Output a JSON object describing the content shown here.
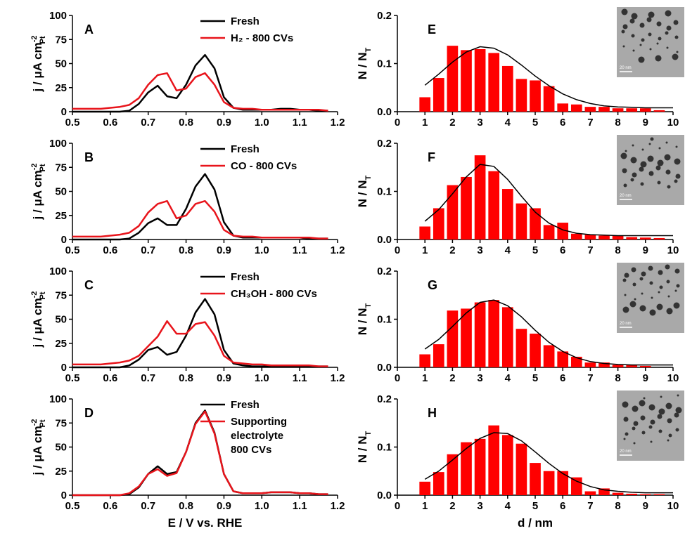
{
  "chart_data": [
    {
      "type": "line",
      "label": "A",
      "y_label": {
        "text": "j / μA cm",
        "sup": "-2",
        "sub": "Pt"
      },
      "x": [
        0.5,
        0.525,
        0.55,
        0.575,
        0.6,
        0.625,
        0.65,
        0.675,
        0.7,
        0.725,
        0.75,
        0.775,
        0.8,
        0.825,
        0.85,
        0.875,
        0.9,
        0.925,
        0.95,
        0.975,
        1.0,
        1.025,
        1.05,
        1.075,
        1.1,
        1.125,
        1.15,
        1.175
      ],
      "series": [
        {
          "name": "Fresh",
          "color": "#000000",
          "values": [
            0,
            0,
            0,
            0,
            0,
            0,
            1,
            8,
            20,
            27,
            16,
            14,
            28,
            48,
            59,
            45,
            15,
            4,
            2,
            2,
            2,
            2,
            3,
            3,
            2,
            2,
            1,
            1
          ]
        },
        {
          "name": "H₂ - 800 CVs",
          "color": "#e8141b",
          "values": [
            3,
            3,
            3,
            3,
            4,
            5,
            7,
            14,
            28,
            38,
            40,
            22,
            24,
            36,
            40,
            28,
            10,
            4,
            3,
            3,
            2,
            2,
            2,
            2,
            2,
            2,
            2,
            1
          ]
        }
      ],
      "xlim": [
        0.5,
        1.2
      ],
      "xticks": [
        0.5,
        0.6,
        0.7,
        0.8,
        0.9,
        {
          "value": 1,
          "label": "1.0"
        },
        1.1,
        1.2
      ],
      "ylim": [
        0,
        100
      ],
      "yticks": [
        0,
        25,
        50,
        75,
        100
      ]
    },
    {
      "type": "line",
      "label": "B",
      "y_label": {
        "text": "j / μA cm",
        "sup": "-2",
        "sub": "Pt"
      },
      "x": [
        0.5,
        0.525,
        0.55,
        0.575,
        0.6,
        0.625,
        0.65,
        0.675,
        0.7,
        0.725,
        0.75,
        0.775,
        0.8,
        0.825,
        0.85,
        0.875,
        0.9,
        0.925,
        0.95,
        0.975,
        1.0,
        1.025,
        1.05,
        1.075,
        1.1,
        1.125,
        1.15,
        1.175
      ],
      "series": [
        {
          "name": "Fresh",
          "color": "#000000",
          "values": [
            0,
            0,
            0,
            0,
            0,
            0,
            1,
            7,
            17,
            22,
            15,
            15,
            32,
            55,
            68,
            52,
            18,
            4,
            2,
            2,
            2,
            2,
            2,
            2,
            2,
            1,
            1,
            1
          ]
        },
        {
          "name": "CO - 800 CVs",
          "color": "#e8141b",
          "values": [
            3,
            3,
            3,
            3,
            4,
            5,
            7,
            14,
            28,
            37,
            40,
            22,
            25,
            37,
            40,
            29,
            10,
            4,
            3,
            3,
            2,
            2,
            2,
            2,
            2,
            2,
            1,
            1
          ]
        }
      ],
      "xlim": [
        0.5,
        1.2
      ],
      "xticks": [
        0.5,
        0.6,
        0.7,
        0.8,
        0.9,
        {
          "value": 1,
          "label": "1.0"
        },
        1.1,
        1.2
      ],
      "ylim": [
        0,
        100
      ],
      "yticks": [
        0,
        25,
        50,
        75,
        100
      ]
    },
    {
      "type": "line",
      "label": "C",
      "y_label": {
        "text": "j / μA cm",
        "sup": "-2",
        "sub": "Pt"
      },
      "x": [
        0.5,
        0.525,
        0.55,
        0.575,
        0.6,
        0.625,
        0.65,
        0.675,
        0.7,
        0.725,
        0.75,
        0.775,
        0.8,
        0.825,
        0.85,
        0.875,
        0.9,
        0.925,
        0.95,
        0.975,
        1.0,
        1.025,
        1.05,
        1.075,
        1.1,
        1.125,
        1.15,
        1.175
      ],
      "series": [
        {
          "name": "Fresh",
          "color": "#000000",
          "values": [
            0,
            0,
            0,
            0,
            0,
            0,
            2,
            8,
            18,
            21,
            13,
            16,
            33,
            57,
            71,
            55,
            18,
            4,
            2,
            1,
            1,
            1,
            1,
            1,
            1,
            1,
            1,
            1
          ]
        },
        {
          "name": "CH₃OH - 800 CVs",
          "color": "#e8141b",
          "values": [
            3,
            3,
            3,
            3,
            4,
            5,
            7,
            12,
            22,
            32,
            48,
            35,
            35,
            45,
            47,
            33,
            12,
            5,
            4,
            3,
            3,
            2,
            2,
            2,
            2,
            2,
            1,
            1
          ]
        }
      ],
      "xlim": [
        0.5,
        1.2
      ],
      "xticks": [
        0.5,
        0.6,
        0.7,
        0.8,
        0.9,
        {
          "value": 1,
          "label": "1.0"
        },
        1.1,
        1.2
      ],
      "ylim": [
        0,
        100
      ],
      "yticks": [
        0,
        25,
        50,
        75,
        100
      ]
    },
    {
      "type": "line",
      "label": "D",
      "y_label": {
        "text": "j / μA cm",
        "sup": "-2",
        "sub": "Pt"
      },
      "x_label": "E / V vs. RHE",
      "x": [
        0.5,
        0.525,
        0.55,
        0.575,
        0.6,
        0.625,
        0.65,
        0.675,
        0.7,
        0.725,
        0.75,
        0.775,
        0.8,
        0.825,
        0.85,
        0.875,
        0.9,
        0.925,
        0.95,
        0.975,
        1.0,
        1.025,
        1.05,
        1.075,
        1.1,
        1.125,
        1.15,
        1.175
      ],
      "series": [
        {
          "name": "Fresh",
          "color": "#000000",
          "values": [
            0,
            0,
            0,
            0,
            0,
            0,
            1,
            8,
            22,
            30,
            22,
            24,
            45,
            75,
            88,
            65,
            22,
            4,
            2,
            2,
            2,
            3,
            3,
            3,
            2,
            2,
            1,
            1
          ]
        },
        {
          "name": "Supporting\nelectrolyte\n800 CVs",
          "color": "#e8141b",
          "values": [
            0,
            0,
            0,
            0,
            0,
            0,
            2,
            9,
            22,
            27,
            20,
            23,
            45,
            74,
            87,
            64,
            22,
            4,
            2,
            2,
            2,
            3,
            3,
            3,
            2,
            2,
            1,
            1
          ]
        }
      ],
      "xlim": [
        0.5,
        1.2
      ],
      "xticks": [
        0.5,
        0.6,
        0.7,
        0.8,
        0.9,
        {
          "value": 1,
          "label": "1.0"
        },
        1.1,
        1.2
      ],
      "ylim": [
        0,
        100
      ],
      "yticks": [
        0,
        25,
        50,
        75,
        100
      ]
    },
    {
      "type": "histogram",
      "label": "E",
      "y_label": {
        "text": "N / N",
        "sub": "T"
      },
      "inset_scale": "20 nm",
      "bins": [
        0.75,
        1.25,
        1.75,
        2.25,
        2.75,
        3.25,
        3.75,
        4.25,
        4.75,
        5.25,
        5.75,
        6.25,
        6.75,
        7.25,
        7.75,
        8.25,
        8.75,
        9.25,
        9.75
      ],
      "values": [
        0.03,
        0.07,
        0.137,
        0.128,
        0.13,
        0.122,
        0.095,
        0.068,
        0.065,
        0.053,
        0.017,
        0.015,
        0.01,
        0.01,
        0.007,
        0.007,
        0.007,
        0.003
      ],
      "color": "#ff0000",
      "fit": {
        "color": "#000000",
        "x": [
          1,
          1.5,
          2,
          2.5,
          3,
          3.5,
          4,
          4.5,
          5,
          5.5,
          6,
          6.5,
          7,
          7.5,
          8,
          8.5,
          9,
          9.5,
          10
        ],
        "values": [
          0.055,
          0.078,
          0.103,
          0.124,
          0.135,
          0.132,
          0.118,
          0.097,
          0.074,
          0.054,
          0.037,
          0.025,
          0.017,
          0.012,
          0.01,
          0.009,
          0.008,
          0.008,
          0.008
        ]
      },
      "xlim": [
        0,
        10
      ],
      "xticks": [
        0,
        1,
        2,
        3,
        4,
        5,
        6,
        7,
        8,
        9,
        10
      ],
      "ylim": [
        0,
        0.2
      ],
      "yticks": [
        {
          "value": 0,
          "label": "0.0"
        },
        0.1,
        0.2
      ]
    },
    {
      "type": "histogram",
      "label": "F",
      "y_label": {
        "text": "N / N",
        "sub": "T"
      },
      "inset_scale": "20 nm",
      "bins": [
        0.75,
        1.25,
        1.75,
        2.25,
        2.75,
        3.25,
        3.75,
        4.25,
        4.75,
        5.25,
        5.75,
        6.25,
        6.75,
        7.25,
        7.75,
        8.25,
        8.75,
        9.25,
        9.75
      ],
      "values": [
        0.027,
        0.065,
        0.113,
        0.13,
        0.175,
        0.142,
        0.105,
        0.075,
        0.065,
        0.03,
        0.035,
        0.012,
        0.01,
        0.008,
        0.008,
        0.005,
        0.004,
        0.003
      ],
      "color": "#ff0000",
      "fit": {
        "color": "#000000",
        "x": [
          1,
          1.5,
          2,
          2.5,
          3,
          3.5,
          4,
          4.5,
          5,
          5.5,
          6,
          6.5,
          7,
          7.5,
          8,
          8.5,
          9,
          9.5,
          10
        ],
        "values": [
          0.038,
          0.062,
          0.095,
          0.13,
          0.156,
          0.152,
          0.125,
          0.09,
          0.057,
          0.034,
          0.02,
          0.013,
          0.01,
          0.009,
          0.008,
          0.008,
          0.008,
          0.008,
          0.008
        ]
      },
      "xlim": [
        0,
        10
      ],
      "xticks": [
        0,
        1,
        2,
        3,
        4,
        5,
        6,
        7,
        8,
        9,
        10
      ],
      "ylim": [
        0,
        0.2
      ],
      "yticks": [
        {
          "value": 0,
          "label": "0.0"
        },
        0.1,
        0.2
      ]
    },
    {
      "type": "histogram",
      "label": "G",
      "y_label": {
        "text": "N / N",
        "sub": "T"
      },
      "inset_scale": "20 nm",
      "bins": [
        0.75,
        1.25,
        1.75,
        2.25,
        2.75,
        3.25,
        3.75,
        4.25,
        4.75,
        5.25,
        5.75,
        6.25,
        6.75,
        7.25,
        7.75,
        8.25,
        8.75,
        9.25,
        9.75
      ],
      "values": [
        0.027,
        0.048,
        0.118,
        0.122,
        0.135,
        0.14,
        0.125,
        0.08,
        0.07,
        0.046,
        0.033,
        0.022,
        0.01,
        0.01,
        0.005,
        0.005,
        0.003,
        0
      ],
      "color": "#ff0000",
      "fit": {
        "color": "#000000",
        "x": [
          1,
          1.5,
          2,
          2.5,
          3,
          3.5,
          4,
          4.5,
          5,
          5.5,
          6,
          6.5,
          7,
          7.5,
          8,
          8.5,
          9,
          9.5,
          10
        ],
        "values": [
          0.038,
          0.058,
          0.085,
          0.113,
          0.135,
          0.14,
          0.128,
          0.105,
          0.077,
          0.052,
          0.033,
          0.02,
          0.012,
          0.008,
          0.006,
          0.005,
          0.005,
          0.005,
          0.005
        ]
      },
      "xlim": [
        0,
        10
      ],
      "xticks": [
        0,
        1,
        2,
        3,
        4,
        5,
        6,
        7,
        8,
        9,
        10
      ],
      "ylim": [
        0,
        0.2
      ],
      "yticks": [
        {
          "value": 0,
          "label": "0.0"
        },
        0.1,
        0.2
      ]
    },
    {
      "type": "histogram",
      "label": "H",
      "y_label": {
        "text": "N / N",
        "sub": "T"
      },
      "inset_scale": "20 nm",
      "x_label": "d / nm",
      "bins": [
        0.75,
        1.25,
        1.75,
        2.25,
        2.75,
        3.25,
        3.75,
        4.25,
        4.75,
        5.25,
        5.75,
        6.25,
        6.75,
        7.25,
        7.75,
        8.25,
        8.75,
        9.25,
        9.75
      ],
      "values": [
        0.028,
        0.048,
        0.085,
        0.11,
        0.117,
        0.145,
        0.125,
        0.107,
        0.067,
        0.05,
        0.05,
        0.037,
        0.008,
        0.014,
        0.005,
        0.003,
        0.002,
        0.002
      ],
      "color": "#ff0000",
      "fit": {
        "color": "#000000",
        "x": [
          1,
          1.5,
          2,
          2.5,
          3,
          3.5,
          4,
          4.5,
          5,
          5.5,
          6,
          6.5,
          7,
          7.5,
          8,
          8.5,
          9,
          9.5,
          10
        ],
        "values": [
          0.033,
          0.05,
          0.073,
          0.097,
          0.118,
          0.13,
          0.128,
          0.113,
          0.09,
          0.066,
          0.045,
          0.029,
          0.018,
          0.011,
          0.008,
          0.006,
          0.005,
          0.005,
          0.005
        ]
      },
      "xlim": [
        0,
        10
      ],
      "xticks": [
        0,
        1,
        2,
        3,
        4,
        5,
        6,
        7,
        8,
        9,
        10
      ],
      "ylim": [
        0,
        0.2
      ],
      "yticks": [
        {
          "value": 0,
          "label": "0.0"
        },
        0.1,
        0.2
      ]
    }
  ]
}
